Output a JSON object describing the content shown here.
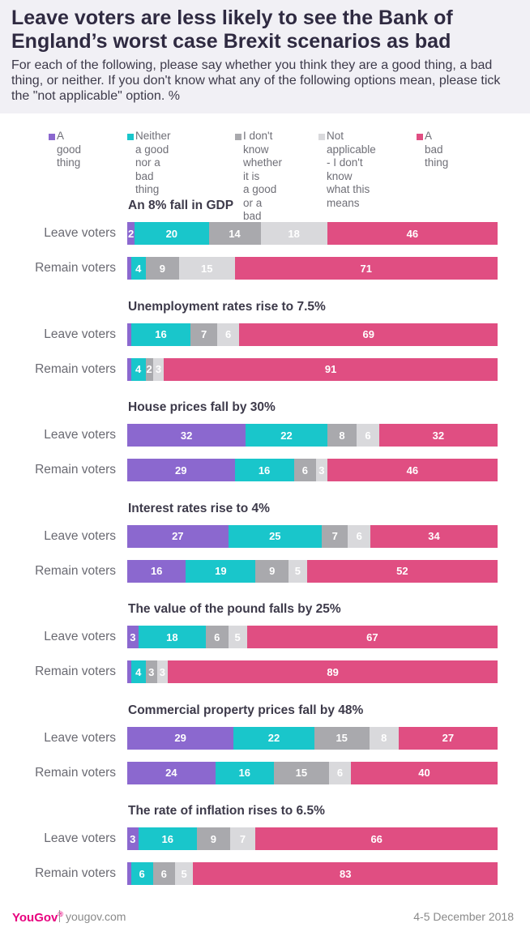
{
  "title": "Leave voters are less likely to see the Bank of England’s worst case Brexit scenarios as bad",
  "subtitle": "For each of the following, please say whether you think they are a good thing, a bad thing, or neither. If you don't know what any of the following options mean, please tick the \"not applicable\" option. %",
  "colors": {
    "good": "#8b68cf",
    "neither": "#19c6cb",
    "dont_know": "#a9a9ad",
    "not_applicable": "#d9d9dc",
    "bad": "#e04e82"
  },
  "chart_data": {
    "type": "bar",
    "stacked": true,
    "orientation": "horizontal",
    "xlim": [
      0,
      100
    ],
    "legend": [
      {
        "key": "good",
        "label": "A good thing"
      },
      {
        "key": "neither",
        "label": "Neither a good\nnor a bad thing"
      },
      {
        "key": "dont_know",
        "label": "I don't know\nwhether it is\na good or a\nbad thing"
      },
      {
        "key": "not_applicable",
        "label": "Not applicable\n- I don't know\nwhat this means"
      },
      {
        "key": "bad",
        "label": "A bad thing"
      }
    ],
    "groups": [
      {
        "title": "An 8% fall in GDP",
        "rows": [
          {
            "label": "Leave voters",
            "values": [
              2,
              20,
              14,
              18,
              46
            ]
          },
          {
            "label": "Remain voters",
            "values": [
              1,
              4,
              9,
              15,
              71
            ]
          }
        ]
      },
      {
        "title": "Unemployment rates rise to 7.5%",
        "rows": [
          {
            "label": "Leave voters",
            "values": [
              1,
              16,
              7,
              6,
              69
            ]
          },
          {
            "label": "Remain voters",
            "values": [
              1,
              4,
              2,
              3,
              91
            ]
          }
        ]
      },
      {
        "title": "House prices fall by 30%",
        "rows": [
          {
            "label": "Leave voters",
            "values": [
              32,
              22,
              8,
              6,
              32
            ]
          },
          {
            "label": "Remain voters",
            "values": [
              29,
              16,
              6,
              3,
              46
            ]
          }
        ]
      },
      {
        "title": "Interest rates rise to 4%",
        "rows": [
          {
            "label": "Leave voters",
            "values": [
              27,
              25,
              7,
              6,
              34
            ]
          },
          {
            "label": "Remain voters",
            "values": [
              16,
              19,
              9,
              5,
              52
            ]
          }
        ]
      },
      {
        "title": "The value of the pound falls by 25%",
        "rows": [
          {
            "label": "Leave voters",
            "values": [
              3,
              18,
              6,
              5,
              67
            ]
          },
          {
            "label": "Remain voters",
            "values": [
              1,
              4,
              3,
              3,
              89
            ]
          }
        ]
      },
      {
        "title": "Commercial property prices fall by 48%",
        "rows": [
          {
            "label": "Leave voters",
            "values": [
              29,
              22,
              15,
              8,
              27
            ]
          },
          {
            "label": "Remain voters",
            "values": [
              24,
              16,
              15,
              6,
              40
            ]
          }
        ]
      },
      {
        "title": "The rate of inflation rises to 6.5%",
        "rows": [
          {
            "label": "Leave voters",
            "values": [
              3,
              16,
              9,
              7,
              66
            ]
          },
          {
            "label": "Remain voters",
            "values": [
              1,
              6,
              6,
              5,
              83
            ]
          }
        ]
      }
    ]
  },
  "footer": {
    "brand": "YouGov",
    "brand_mark": "®",
    "site": "yougov.com",
    "date": "4-5 December 2018"
  }
}
